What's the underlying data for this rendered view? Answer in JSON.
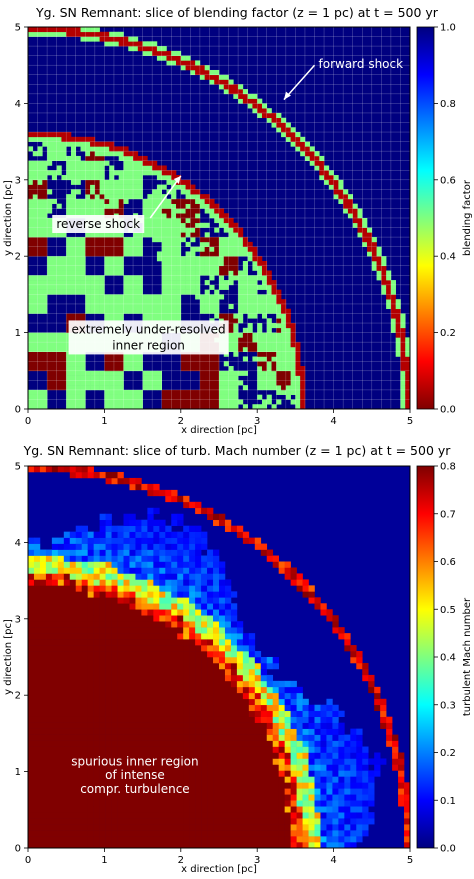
{
  "chart_data": [
    {
      "type": "heatmap",
      "title": "Yg. SN Remnant: slice of blending factor (z = 1 pc) at t = 500 yr",
      "xlabel": "x direction [pc]",
      "ylabel": "y direction [pc]",
      "xlim": [
        0,
        5
      ],
      "ylim": [
        0,
        5
      ],
      "xticks": [
        "0",
        "1",
        "2",
        "3",
        "4",
        "5"
      ],
      "yticks": [
        "0",
        "1",
        "2",
        "3",
        "4",
        "5"
      ],
      "colorbar": {
        "label": "blending factor",
        "range": [
          0.0,
          1.0
        ],
        "ticks": [
          "0.0",
          "0.2",
          "0.4",
          "0.6",
          "0.8",
          "1.0"
        ],
        "colormap": "jet-reversed"
      },
      "features": {
        "forward_shock_radius_pc": 5.0,
        "reverse_shock_radius_pc": 3.6,
        "background_value": 1.0,
        "shock_value": 0.05
      },
      "annotations": [
        {
          "text": "forward shock",
          "at": [
            3.35,
            4.05
          ],
          "from": [
            3.75,
            4.5
          ]
        },
        {
          "text": "reverse shock",
          "at": [
            2.0,
            3.05
          ],
          "from": [
            1.6,
            2.5
          ]
        },
        {
          "text": "extremely under-resolved",
          "at": [
            1.5,
            0.95
          ]
        },
        {
          "text": "inner region",
          "at": [
            1.5,
            0.78
          ]
        }
      ]
    },
    {
      "type": "heatmap",
      "title": "Yg. SN Remnant: slice of turb. Mach number (z = 1 pc) at t = 500 yr",
      "xlabel": "x direction [pc]",
      "ylabel": "y direction [pc]",
      "xlim": [
        0,
        5
      ],
      "ylim": [
        0,
        5
      ],
      "xticks": [
        "0",
        "1",
        "2",
        "3",
        "4",
        "5"
      ],
      "yticks": [
        "0",
        "1",
        "2",
        "3",
        "4",
        "5"
      ],
      "colorbar": {
        "label": "turbulent Mach number",
        "range": [
          0.0,
          0.8
        ],
        "ticks": [
          "0.0",
          "0.1",
          "0.2",
          "0.3",
          "0.4",
          "0.5",
          "0.6",
          "0.7",
          "0.8"
        ],
        "colormap": "jet"
      },
      "features": {
        "forward_shock_radius_pc": 5.0,
        "reverse_shock_radius_pc": 3.55,
        "inner_region_value": 0.8,
        "outer_value": 0.02
      },
      "annotations": [
        {
          "text": "spurious inner region",
          "at": [
            1.4,
            1.08
          ]
        },
        {
          "text": "of intense",
          "at": [
            1.4,
            0.9
          ]
        },
        {
          "text": "compr. turbulence",
          "at": [
            1.4,
            0.72
          ]
        }
      ]
    }
  ],
  "colors": {
    "blend_background": "#00007f",
    "blend_mid": "#7fff7f",
    "blend_low": "#7f0000",
    "annotation_box": "#ffffff",
    "annotation_text_dark": "#000000",
    "annotation_text_light": "#ffffff"
  }
}
